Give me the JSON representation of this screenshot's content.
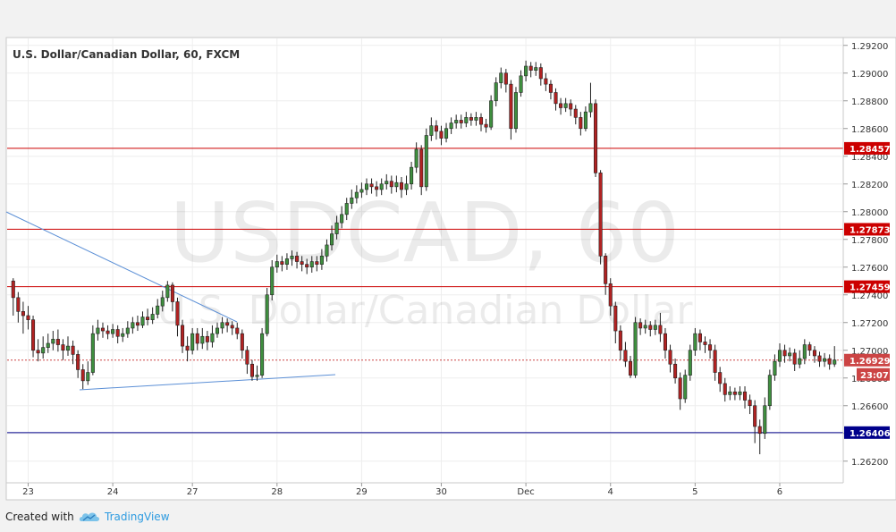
{
  "chart_data": {
    "type": "candlestick",
    "title": "U.S. Dollar/Canadian Dollar, 60, FXCM",
    "watermark_symbol": "USDCAD, 60",
    "watermark_name": "U.S. Dollar/Canadian Dollar",
    "y_ticks": [
      "1.29200",
      "1.29000",
      "1.28800",
      "1.28600",
      "1.28400",
      "1.28200",
      "1.28000",
      "1.27800",
      "1.27600",
      "1.27400",
      "1.27200",
      "1.27000",
      "1.26800",
      "1.26600",
      "1.26400",
      "1.26200"
    ],
    "ylim": [
      1.2605,
      1.2925
    ],
    "x_labels": [
      "23",
      "24",
      "27",
      "28",
      "29",
      "30",
      "Dec",
      "4",
      "5",
      "6"
    ],
    "grid": true,
    "horizontal_levels": [
      {
        "value": 1.28457,
        "label": "1.28457",
        "color": "#cc0000"
      },
      {
        "value": 1.27873,
        "label": "1.27873",
        "color": "#cc0000"
      },
      {
        "value": 1.27459,
        "label": "1.27459",
        "color": "#cc0000"
      },
      {
        "value": 1.26406,
        "label": "1.26406",
        "color": "#00008b"
      }
    ],
    "current_price": {
      "value": 1.26929,
      "label": "1.26929",
      "countdown": "23:07",
      "color": "#cc4444"
    },
    "series": [
      {
        "points": [
          [
            1.275,
            1.2738,
            1.2752,
            1.2725
          ],
          [
            1.2738,
            1.2728,
            1.2742,
            1.272
          ],
          [
            1.2728,
            1.2725,
            1.2735,
            1.2712
          ],
          [
            1.2725,
            1.2722,
            1.2732,
            1.2715
          ],
          [
            1.2722,
            1.27,
            1.2725,
            1.2695
          ],
          [
            1.27,
            1.2698,
            1.2708,
            1.2692
          ],
          [
            1.2698,
            1.2702,
            1.271,
            1.2694
          ],
          [
            1.2702,
            1.2705,
            1.2712,
            1.2698
          ],
          [
            1.2705,
            1.2708,
            1.2714,
            1.27
          ],
          [
            1.2708,
            1.2704,
            1.2715,
            1.2699
          ],
          [
            1.2704,
            1.27,
            1.2708,
            1.2693
          ],
          [
            1.27,
            1.2703,
            1.271,
            1.2696
          ],
          [
            1.2703,
            1.2697,
            1.2707,
            1.269
          ],
          [
            1.2697,
            1.2686,
            1.27,
            1.268
          ],
          [
            1.2686,
            1.2678,
            1.269,
            1.2672
          ],
          [
            1.2678,
            1.2684,
            1.2692,
            1.2675
          ],
          [
            1.2684,
            1.2712,
            1.2718,
            1.2682
          ],
          [
            1.2712,
            1.2716,
            1.2722,
            1.2707
          ],
          [
            1.2716,
            1.2714,
            1.272,
            1.2709
          ],
          [
            1.2714,
            1.2712,
            1.2718,
            1.2708
          ],
          [
            1.2712,
            1.2715,
            1.2719,
            1.2709
          ],
          [
            1.2715,
            1.271,
            1.2718,
            1.2705
          ],
          [
            1.271,
            1.2712,
            1.2716,
            1.2706
          ],
          [
            1.2712,
            1.2716,
            1.2721,
            1.2709
          ],
          [
            1.2716,
            1.272,
            1.2724,
            1.2712
          ],
          [
            1.272,
            1.2718,
            1.2725,
            1.2714
          ],
          [
            1.2718,
            1.2724,
            1.2728,
            1.2716
          ],
          [
            1.2724,
            1.2722,
            1.273,
            1.2718
          ],
          [
            1.2722,
            1.2726,
            1.2731,
            1.2719
          ],
          [
            1.2726,
            1.2732,
            1.2737,
            1.2723
          ],
          [
            1.2732,
            1.2738,
            1.2743,
            1.2728
          ],
          [
            1.2738,
            1.2747,
            1.275,
            1.2735
          ],
          [
            1.2747,
            1.2735,
            1.2749,
            1.2728
          ],
          [
            1.2735,
            1.2718,
            1.2738,
            1.271
          ],
          [
            1.2718,
            1.2703,
            1.2722,
            1.2698
          ],
          [
            1.2703,
            1.27,
            1.271,
            1.2692
          ],
          [
            1.27,
            1.2712,
            1.2716,
            1.2697
          ],
          [
            1.2712,
            1.2705,
            1.2716,
            1.27
          ],
          [
            1.2705,
            1.271,
            1.2716,
            1.2701
          ],
          [
            1.271,
            1.2706,
            1.2714,
            1.27
          ],
          [
            1.2706,
            1.2712,
            1.2718,
            1.2702
          ],
          [
            1.2712,
            1.2716,
            1.272,
            1.2709
          ],
          [
            1.2716,
            1.272,
            1.2724,
            1.2712
          ],
          [
            1.272,
            1.2718,
            1.2723,
            1.2713
          ],
          [
            1.2718,
            1.2716,
            1.2721,
            1.2711
          ],
          [
            1.2716,
            1.2712,
            1.272,
            1.2708
          ],
          [
            1.2712,
            1.27,
            1.2715,
            1.2694
          ],
          [
            1.27,
            1.269,
            1.2703,
            1.2683
          ],
          [
            1.269,
            1.2681,
            1.2693,
            1.2678
          ],
          [
            1.2681,
            1.2682,
            1.2689,
            1.2678
          ],
          [
            1.2682,
            1.2712,
            1.2716,
            1.268
          ],
          [
            1.2712,
            1.274,
            1.2745,
            1.271
          ],
          [
            1.274,
            1.276,
            1.2765,
            1.2736
          ],
          [
            1.276,
            1.2764,
            1.2769,
            1.2756
          ],
          [
            1.2764,
            1.2762,
            1.2768,
            1.2757
          ],
          [
            1.2762,
            1.2766,
            1.277,
            1.2758
          ],
          [
            1.2766,
            1.2768,
            1.2772,
            1.2761
          ],
          [
            1.2768,
            1.2764,
            1.2771,
            1.2759
          ],
          [
            1.2764,
            1.2762,
            1.2768,
            1.2757
          ],
          [
            1.2762,
            1.276,
            1.2766,
            1.2755
          ],
          [
            1.276,
            1.2764,
            1.2768,
            1.2756
          ],
          [
            1.2764,
            1.2762,
            1.2768,
            1.2757
          ],
          [
            1.2762,
            1.2768,
            1.2773,
            1.2758
          ],
          [
            1.2768,
            1.2776,
            1.278,
            1.2764
          ],
          [
            1.2776,
            1.2784,
            1.279,
            1.2772
          ],
          [
            1.2784,
            1.2792,
            1.2797,
            1.278
          ],
          [
            1.2792,
            1.2798,
            1.2804,
            1.2788
          ],
          [
            1.2798,
            1.2806,
            1.281,
            1.2794
          ],
          [
            1.2806,
            1.281,
            1.2816,
            1.2802
          ],
          [
            1.281,
            1.2814,
            1.2819,
            1.2806
          ],
          [
            1.2814,
            1.2816,
            1.2821,
            1.281
          ],
          [
            1.2816,
            1.282,
            1.2824,
            1.2812
          ],
          [
            1.282,
            1.2818,
            1.2824,
            1.2813
          ],
          [
            1.2818,
            1.2816,
            1.2822,
            1.2811
          ],
          [
            1.2816,
            1.282,
            1.2824,
            1.2812
          ],
          [
            1.282,
            1.2822,
            1.2827,
            1.2816
          ],
          [
            1.2822,
            1.2818,
            1.2826,
            1.2813
          ],
          [
            1.2818,
            1.2821,
            1.2826,
            1.2814
          ],
          [
            1.2821,
            1.2816,
            1.2825,
            1.281
          ],
          [
            1.2816,
            1.282,
            1.2826,
            1.2812
          ],
          [
            1.282,
            1.2832,
            1.2836,
            1.2816
          ],
          [
            1.2832,
            1.2845,
            1.285,
            1.2828
          ],
          [
            1.2845,
            1.2818,
            1.2848,
            1.2812
          ],
          [
            1.2818,
            1.2855,
            1.286,
            1.2815
          ],
          [
            1.2855,
            1.2862,
            1.2868,
            1.2851
          ],
          [
            1.2862,
            1.2858,
            1.2866,
            1.2852
          ],
          [
            1.2858,
            1.2853,
            1.2862,
            1.2848
          ],
          [
            1.2853,
            1.286,
            1.2864,
            1.285
          ],
          [
            1.286,
            1.2864,
            1.2868,
            1.2856
          ],
          [
            1.2864,
            1.2866,
            1.287,
            1.286
          ],
          [
            1.2866,
            1.2864,
            1.287,
            1.286
          ],
          [
            1.2864,
            1.2868,
            1.2872,
            1.2861
          ],
          [
            1.2868,
            1.2866,
            1.2871,
            1.2862
          ],
          [
            1.2866,
            1.2868,
            1.2872,
            1.2862
          ],
          [
            1.2868,
            1.2863,
            1.2871,
            1.2858
          ],
          [
            1.2863,
            1.2861,
            1.2867,
            1.2857
          ],
          [
            1.2861,
            1.288,
            1.2884,
            1.2859
          ],
          [
            1.288,
            1.2893,
            1.2897,
            1.2876
          ],
          [
            1.2893,
            1.29,
            1.2904,
            1.2889
          ],
          [
            1.29,
            1.2892,
            1.2903,
            1.2886
          ],
          [
            1.2892,
            1.286,
            1.2895,
            1.2852
          ],
          [
            1.286,
            1.2886,
            1.289,
            1.2857
          ],
          [
            1.2886,
            1.2898,
            1.2902,
            1.2883
          ],
          [
            1.2898,
            1.2905,
            1.2909,
            1.2894
          ],
          [
            1.2905,
            1.2902,
            1.2908,
            1.2897
          ],
          [
            1.2902,
            1.2904,
            1.2908,
            1.2898
          ],
          [
            1.2904,
            1.2896,
            1.2907,
            1.2891
          ],
          [
            1.2896,
            1.2892,
            1.29,
            1.2887
          ],
          [
            1.2892,
            1.2886,
            1.2895,
            1.2881
          ],
          [
            1.2886,
            1.2878,
            1.2889,
            1.2873
          ],
          [
            1.2878,
            1.2875,
            1.2882,
            1.287
          ],
          [
            1.2875,
            1.2878,
            1.2882,
            1.2872
          ],
          [
            1.2878,
            1.2874,
            1.2881,
            1.2869
          ],
          [
            1.2874,
            1.2868,
            1.2877,
            1.2863
          ],
          [
            1.2868,
            1.286,
            1.2872,
            1.2855
          ],
          [
            1.286,
            1.2872,
            1.2876,
            1.2858
          ],
          [
            1.2872,
            1.2878,
            1.2893,
            1.2868
          ],
          [
            1.2878,
            1.2828,
            1.2881,
            1.2825
          ],
          [
            1.2828,
            1.2768,
            1.283,
            1.2762
          ],
          [
            1.2768,
            1.2748,
            1.277,
            1.274
          ],
          [
            1.2748,
            1.2732,
            1.2752,
            1.2725
          ],
          [
            1.2732,
            1.2714,
            1.2735,
            1.2705
          ],
          [
            1.2714,
            1.27,
            1.2718,
            1.2693
          ],
          [
            1.27,
            1.2692,
            1.2706,
            1.2688
          ],
          [
            1.2692,
            1.2682,
            1.2696,
            1.268
          ],
          [
            1.2682,
            1.272,
            1.2724,
            1.268
          ],
          [
            1.272,
            1.2716,
            1.2723,
            1.2711
          ],
          [
            1.2716,
            1.2718,
            1.2722,
            1.2712
          ],
          [
            1.2718,
            1.2715,
            1.2721,
            1.271
          ],
          [
            1.2715,
            1.2718,
            1.2722,
            1.2711
          ],
          [
            1.2718,
            1.2712,
            1.2727,
            1.2706
          ],
          [
            1.2712,
            1.27,
            1.2716,
            1.2694
          ],
          [
            1.27,
            1.269,
            1.2704,
            1.2684
          ],
          [
            1.269,
            1.268,
            1.2694,
            1.2676
          ],
          [
            1.268,
            1.2665,
            1.2684,
            1.2657
          ],
          [
            1.2665,
            1.2682,
            1.2686,
            1.2662
          ],
          [
            1.2682,
            1.27,
            1.2704,
            1.2678
          ],
          [
            1.27,
            1.2712,
            1.2716,
            1.2696
          ],
          [
            1.2712,
            1.2706,
            1.2715,
            1.27
          ],
          [
            1.2706,
            1.2704,
            1.271,
            1.2698
          ],
          [
            1.2704,
            1.27,
            1.2708,
            1.2694
          ],
          [
            1.27,
            1.2684,
            1.2704,
            1.2678
          ],
          [
            1.2684,
            1.2676,
            1.2688,
            1.267
          ],
          [
            1.2676,
            1.2668,
            1.268,
            1.2663
          ],
          [
            1.2668,
            1.267,
            1.2674,
            1.2664
          ],
          [
            1.267,
            1.2668,
            1.2673,
            1.2664
          ],
          [
            1.2668,
            1.267,
            1.2674,
            1.2664
          ],
          [
            1.267,
            1.2664,
            1.2674,
            1.2658
          ],
          [
            1.2664,
            1.266,
            1.2668,
            1.2654
          ],
          [
            1.266,
            1.2645,
            1.2664,
            1.2633
          ],
          [
            1.2645,
            1.264,
            1.265,
            1.2625
          ],
          [
            1.264,
            1.266,
            1.2666,
            1.2636
          ],
          [
            1.266,
            1.2682,
            1.2686,
            1.2657
          ],
          [
            1.2682,
            1.2692,
            1.2697,
            1.2678
          ],
          [
            1.2692,
            1.27,
            1.2705,
            1.2688
          ],
          [
            1.27,
            1.2696,
            1.2704,
            1.2691
          ],
          [
            1.2696,
            1.2698,
            1.2702,
            1.2692
          ],
          [
            1.2698,
            1.269,
            1.2701,
            1.2685
          ],
          [
            1.269,
            1.2694,
            1.27,
            1.2687
          ],
          [
            1.2694,
            1.2704,
            1.2708,
            1.269
          ],
          [
            1.2704,
            1.27,
            1.2706,
            1.2696
          ],
          [
            1.27,
            1.2696,
            1.2703,
            1.2691
          ],
          [
            1.2696,
            1.2692,
            1.2699,
            1.2688
          ],
          [
            1.2692,
            1.2694,
            1.2698,
            1.2688
          ],
          [
            1.2694,
            1.269,
            1.2697,
            1.2686
          ],
          [
            1.269,
            1.2693,
            1.2703,
            1.2688
          ]
        ]
      }
    ]
  },
  "footer": {
    "created_with": "Created with",
    "brand": "TradingView"
  }
}
